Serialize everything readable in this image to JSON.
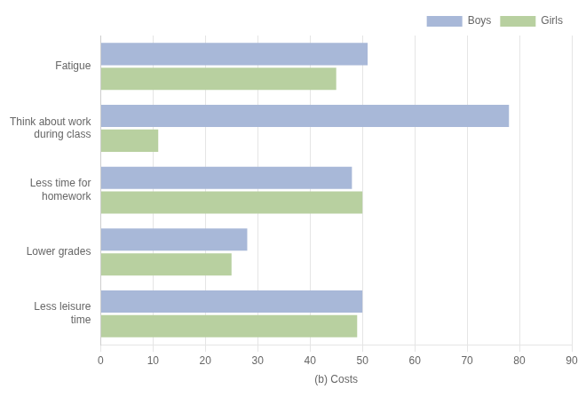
{
  "chart_data": {
    "type": "bar",
    "orientation": "horizontal",
    "x_label": "(b) Costs",
    "categories": [
      "Less leisure\ntime",
      "Lower grades",
      "Less time for\nhomework",
      "Think about work\nduring class",
      "Fatigue"
    ],
    "series": [
      {
        "name": "Boys",
        "color": "#a8b8d8",
        "values": [
          50,
          28,
          48,
          78,
          51
        ]
      },
      {
        "name": "Girls",
        "color": "#b8d0a0",
        "values": [
          49,
          25,
          50,
          11,
          45
        ]
      }
    ],
    "xlim": [
      0,
      90
    ],
    "xticks": [
      0,
      10,
      20,
      30,
      40,
      50,
      60,
      70,
      80,
      90
    ],
    "grid": true,
    "legend": "upper right"
  }
}
